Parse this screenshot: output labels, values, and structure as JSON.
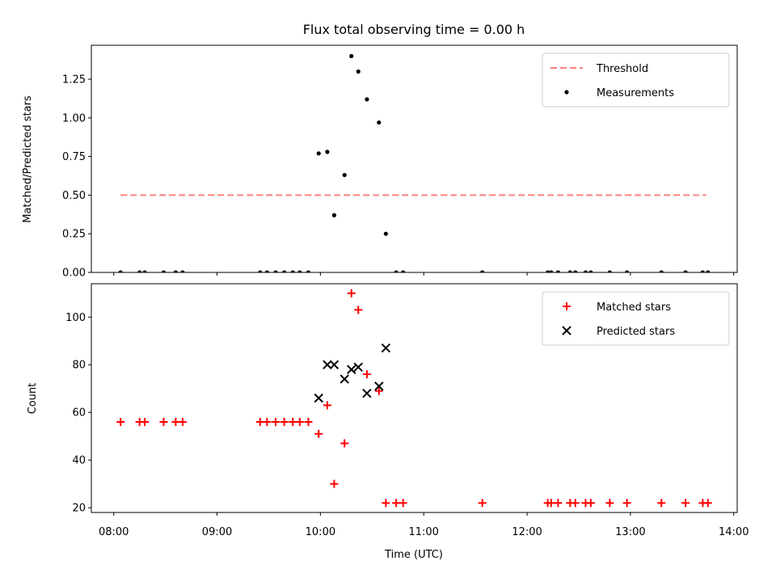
{
  "chart_data": [
    {
      "type": "scatter",
      "title": "Flux total observing time = 0.00 h",
      "xlabel": "",
      "ylabel": "Matched/Predicted stars",
      "xlim": [
        "07:47",
        "14:02"
      ],
      "ylim": [
        0,
        1.47
      ],
      "xticks": [
        "08:00",
        "09:00",
        "10:00",
        "11:00",
        "12:00",
        "13:00",
        "14:00"
      ],
      "yticks": [
        0.0,
        0.25,
        0.5,
        0.75,
        1.0,
        1.25
      ],
      "ytick_labels": [
        "0.00",
        "0.25",
        "0.50",
        "0.75",
        "1.00",
        "1.25"
      ],
      "grid": false,
      "legend": "top-right",
      "series": [
        {
          "name": "Threshold",
          "kind": "line",
          "style": "dashed",
          "color": "#ff7f7f",
          "x": [
            "08:04",
            "13:44"
          ],
          "y": [
            0.5,
            0.5
          ]
        },
        {
          "name": "Measurements",
          "kind": "scatter",
          "marker": "dot",
          "color": "#000000",
          "x": [
            "08:04",
            "08:15",
            "08:18",
            "08:29",
            "08:36",
            "08:40",
            "09:25",
            "09:29",
            "09:34",
            "09:39",
            "09:44",
            "09:48",
            "09:53",
            "09:59",
            "10:04",
            "10:08",
            "10:14",
            "10:18",
            "10:22",
            "10:27",
            "10:34",
            "10:38",
            "10:44",
            "10:48",
            "11:34",
            "12:12",
            "12:14",
            "12:18",
            "12:25",
            "12:28",
            "12:34",
            "12:37",
            "12:48",
            "12:58",
            "13:18",
            "13:32",
            "13:42",
            "13:45"
          ],
          "y": [
            0,
            0,
            0,
            0,
            0,
            0,
            0,
            0,
            0,
            0,
            0,
            0,
            0,
            0.77,
            0.78,
            0.37,
            0.63,
            1.4,
            1.3,
            1.12,
            0.97,
            0.25,
            0,
            0,
            0,
            0,
            0,
            0,
            0,
            0,
            0,
            0,
            0,
            0,
            0,
            0,
            0,
            0
          ]
        }
      ]
    },
    {
      "type": "scatter",
      "title": "",
      "xlabel": "Time (UTC)",
      "ylabel": "Count",
      "xlim": [
        "07:47",
        "14:02"
      ],
      "ylim": [
        18,
        114
      ],
      "xticks": [
        "08:00",
        "09:00",
        "10:00",
        "11:00",
        "12:00",
        "13:00",
        "14:00"
      ],
      "yticks": [
        20,
        40,
        60,
        80,
        100
      ],
      "ytick_labels": [
        "20",
        "40",
        "60",
        "80",
        "100"
      ],
      "grid": false,
      "legend": "top-right",
      "series": [
        {
          "name": "Matched stars",
          "kind": "scatter",
          "marker": "plus",
          "color": "#ff0000",
          "x": [
            "08:04",
            "08:15",
            "08:18",
            "08:29",
            "08:36",
            "08:40",
            "09:25",
            "09:29",
            "09:34",
            "09:39",
            "09:44",
            "09:48",
            "09:53",
            "09:59",
            "10:04",
            "10:08",
            "10:14",
            "10:18",
            "10:22",
            "10:27",
            "10:34",
            "10:38",
            "10:44",
            "10:48",
            "11:34",
            "12:12",
            "12:14",
            "12:18",
            "12:25",
            "12:28",
            "12:34",
            "12:37",
            "12:48",
            "12:58",
            "13:18",
            "13:32",
            "13:42",
            "13:45"
          ],
          "y": [
            56,
            56,
            56,
            56,
            56,
            56,
            56,
            56,
            56,
            56,
            56,
            56,
            56,
            51,
            63,
            30,
            47,
            110,
            103,
            76,
            69,
            22,
            22,
            22,
            22,
            22,
            22,
            22,
            22,
            22,
            22,
            22,
            22,
            22,
            22,
            22,
            22,
            22
          ]
        },
        {
          "name": "Predicted stars",
          "kind": "scatter",
          "marker": "x",
          "color": "#000000",
          "x": [
            "09:59",
            "10:04",
            "10:08",
            "10:14",
            "10:18",
            "10:22",
            "10:27",
            "10:34",
            "10:38"
          ],
          "y": [
            66,
            80,
            80,
            74,
            78,
            79,
            68,
            71,
            87
          ]
        }
      ]
    }
  ]
}
